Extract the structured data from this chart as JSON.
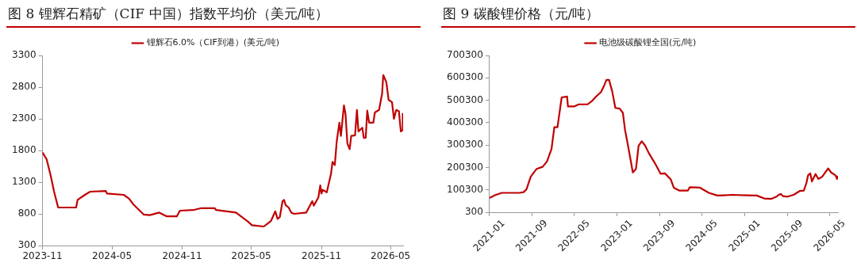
{
  "chart_data": [
    {
      "type": "line",
      "title": "图 8 锂辉石精矿（CIF 中国）指数平均价（美元/吨）",
      "legend": "top",
      "marker": "none",
      "line_style": "solid",
      "xlim": [
        "2023-11-01",
        "2026-06-03"
      ],
      "xticks": [
        "2023-11",
        "2024-05",
        "2024-11",
        "2025-05",
        "2025-11",
        "2026-05"
      ],
      "ylim": [
        300,
        3300
      ],
      "yticks": [
        300,
        800,
        1300,
        1800,
        2300,
        2800,
        3300
      ],
      "series": [
        {
          "name": "锂辉石6.0%（CIF到港）(美元/吨)",
          "color": "#c00000",
          "x": [
            "2023-11-01",
            "2023-11-12",
            "2023-11-23",
            "2023-12-01",
            "2023-12-12",
            "2024-01-28",
            "2024-02-01",
            "2024-02-20",
            "2024-03-05",
            "2024-04-15",
            "2024-04-18",
            "2024-06-01",
            "2024-06-15",
            "2024-06-26",
            "2024-07-23",
            "2024-08-08",
            "2024-09-02",
            "2024-09-22",
            "2024-10-18",
            "2024-10-26",
            "2024-11-30",
            "2024-12-21",
            "2025-01-25",
            "2025-01-29",
            "2025-03-22",
            "2025-04-22",
            "2025-05-03",
            "2025-06-03",
            "2025-06-22",
            "2025-07-03",
            "2025-07-09",
            "2025-07-15",
            "2025-07-22",
            "2025-07-26",
            "2025-07-30",
            "2025-08-07",
            "2025-08-14",
            "2025-08-22",
            "2025-09-22",
            "2025-10-08",
            "2025-10-12",
            "2025-10-24",
            "2025-10-29",
            "2025-11-01",
            "2025-11-04",
            "2025-11-15",
            "2025-11-26",
            "2025-11-30",
            "2025-12-06",
            "2025-12-11",
            "2025-12-18",
            "2025-12-22",
            "2025-12-30",
            "2026-01-03",
            "2026-01-08",
            "2026-01-14",
            "2026-01-18",
            "2026-01-28",
            "2026-02-02",
            "2026-02-06",
            "2026-02-16",
            "2026-02-20",
            "2026-02-25",
            "2026-03-01",
            "2026-03-06",
            "2026-03-17",
            "2026-03-21",
            "2026-04-01",
            "2026-04-09",
            "2026-04-12",
            "2026-04-20",
            "2026-04-26",
            "2026-05-05",
            "2026-05-10",
            "2026-05-16",
            "2026-05-23",
            "2026-05-28",
            "2026-06-01",
            "2026-06-02"
          ],
          "values": [
            1770,
            1660,
            1390,
            1160,
            900,
            900,
            1020,
            1100,
            1150,
            1160,
            1120,
            1100,
            1040,
            950,
            790,
            780,
            820,
            760,
            760,
            850,
            860,
            890,
            890,
            860,
            820,
            680,
            620,
            600,
            690,
            840,
            720,
            750,
            1000,
            1020,
            940,
            900,
            820,
            800,
            820,
            1000,
            930,
            1060,
            1250,
            1120,
            1180,
            1140,
            1430,
            1620,
            1570,
            1940,
            2240,
            2030,
            2510,
            2380,
            1910,
            1820,
            2030,
            2040,
            2440,
            2100,
            2160,
            2000,
            2000,
            2430,
            2240,
            2240,
            2400,
            2440,
            2700,
            2990,
            2880,
            2600,
            2560,
            2300,
            2440,
            2420,
            2100,
            2120,
            2390
          ]
        }
      ]
    },
    {
      "type": "line",
      "title": "图 9 碳酸锂价格（元/吨）",
      "legend": "top",
      "marker": "none",
      "line_style": "solid",
      "xlim": [
        "2021-01-01",
        "2026-06-17"
      ],
      "xticks": [
        "2021-01",
        "2021-09",
        "2022-05",
        "2023-01",
        "2023-09",
        "2024-05",
        "2025-01",
        "2025-09",
        "2026-05"
      ],
      "ylim": [
        300,
        700300
      ],
      "yticks": [
        300,
        100300,
        200300,
        300300,
        400300,
        500300,
        600300,
        700300
      ],
      "series": [
        {
          "name": "电池级碳酸锂全国(元/吨)",
          "color": "#c00000",
          "x": [
            "2021-01-01",
            "2021-02-01",
            "2021-03-12",
            "2021-06-20",
            "2021-07-15",
            "2021-08-01",
            "2021-08-25",
            "2021-09-28",
            "2021-11-01",
            "2021-11-26",
            "2021-12-22",
            "2022-01-07",
            "2022-01-25",
            "2022-02-18",
            "2022-03-21",
            "2022-03-26",
            "2022-05-02",
            "2022-05-27",
            "2022-07-16",
            "2022-08-10",
            "2022-09-06",
            "2022-10-01",
            "2022-10-20",
            "2022-11-01",
            "2022-11-16",
            "2022-12-04",
            "2022-12-22",
            "2023-01-16",
            "2023-02-03",
            "2023-02-15",
            "2023-03-02",
            "2023-04-01",
            "2023-04-19",
            "2023-05-04",
            "2023-05-22",
            "2023-06-10",
            "2023-07-01",
            "2023-08-04",
            "2023-09-07",
            "2023-10-01",
            "2023-11-04",
            "2023-11-21",
            "2023-12-24",
            "2024-02-09",
            "2024-02-21",
            "2024-04-19",
            "2024-06-09",
            "2024-07-28",
            "2024-09-01",
            "2024-10-19",
            "2025-01-12",
            "2025-03-10",
            "2025-04-21",
            "2025-06-01",
            "2025-07-01",
            "2025-07-13",
            "2025-07-26",
            "2025-08-07",
            "2025-09-02",
            "2025-10-06",
            "2025-11-10",
            "2025-12-04",
            "2025-12-19",
            "2025-12-28",
            "2026-01-10",
            "2026-01-19",
            "2026-02-09",
            "2026-02-25",
            "2026-03-19",
            "2026-04-22",
            "2026-05-09",
            "2026-06-03",
            "2026-06-12",
            "2026-06-15"
          ],
          "values": [
            64000,
            76000,
            87000,
            87000,
            90000,
            103000,
            159000,
            194000,
            203000,
            227000,
            283000,
            380000,
            380000,
            513000,
            517000,
            473000,
            473000,
            482000,
            482000,
            497000,
            519000,
            537000,
            568000,
            591000,
            591000,
            540000,
            466000,
            463000,
            444000,
            370000,
            308000,
            178000,
            194000,
            298000,
            317000,
            298000,
            265000,
            221000,
            172000,
            174000,
            147000,
            110000,
            97000,
            97000,
            112000,
            110000,
            87000,
            75000,
            76000,
            78000,
            76000,
            75000,
            62000,
            60000,
            70000,
            78000,
            82000,
            72000,
            70000,
            78000,
            95000,
            97000,
            132000,
            165000,
            174000,
            138000,
            171000,
            149000,
            159000,
            196000,
            178000,
            165000,
            149000,
            163000
          ]
        }
      ]
    }
  ]
}
